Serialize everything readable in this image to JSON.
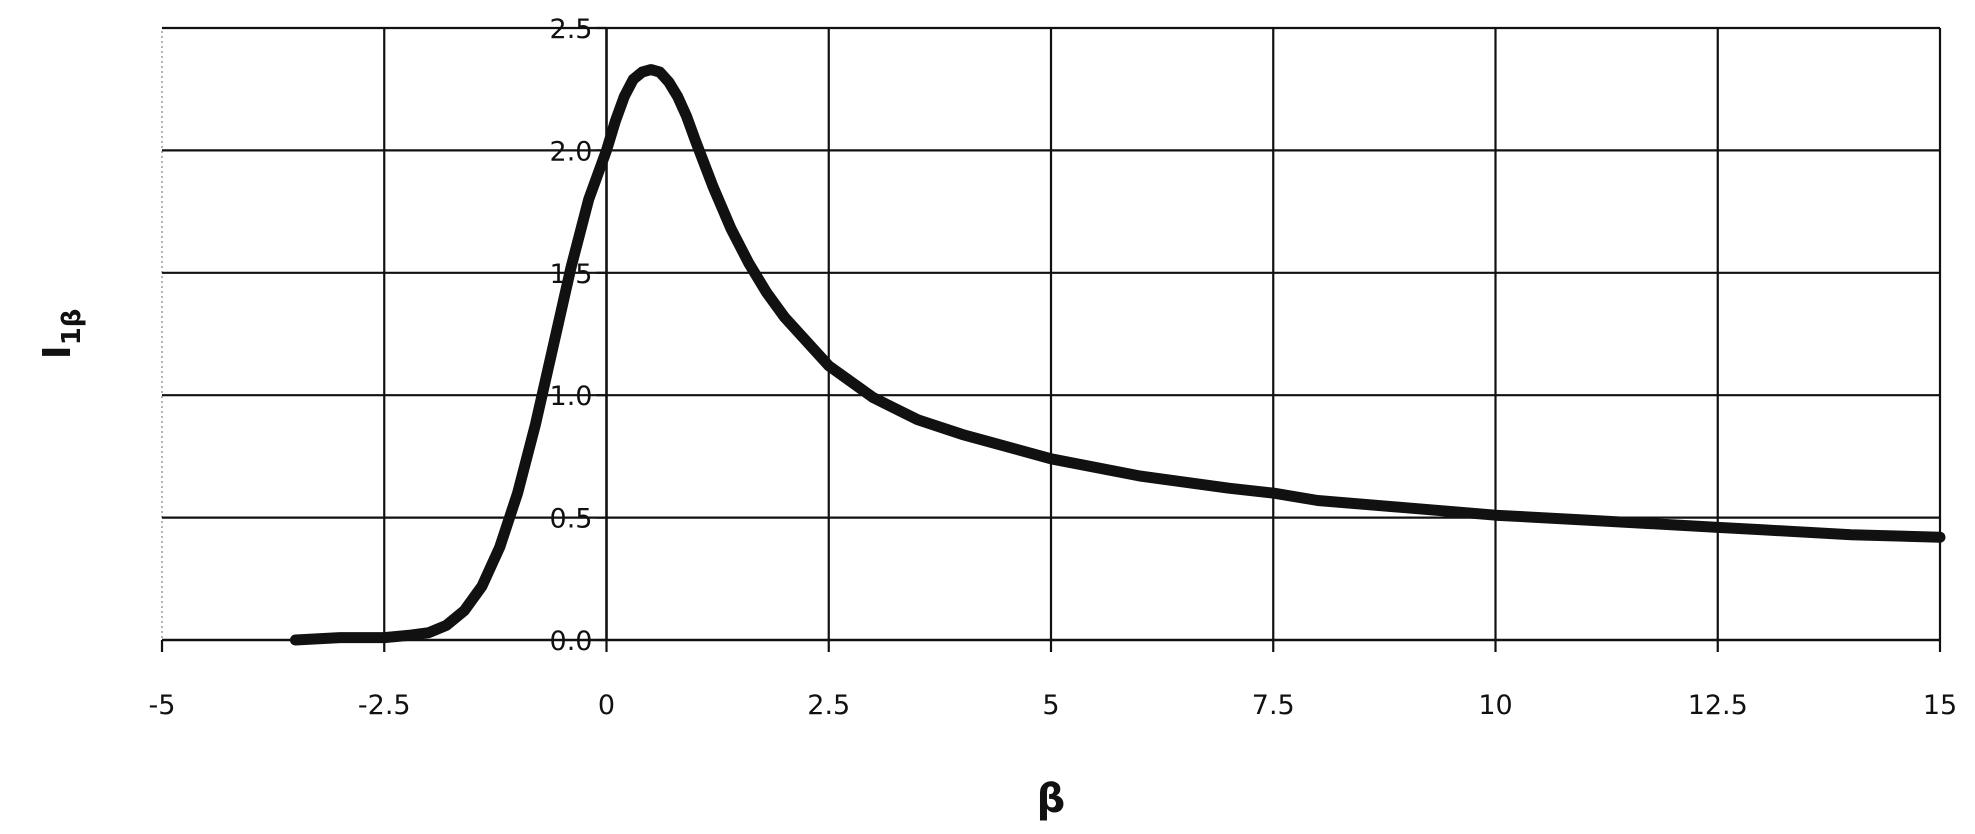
{
  "chart_data": {
    "type": "line",
    "title": "",
    "xlabel": "β",
    "ylabel_main": "I",
    "ylabel_sub": "1β",
    "xlim": [
      -5,
      15
    ],
    "ylim": [
      0,
      2.5
    ],
    "grid": true,
    "legend": "none",
    "x_ticks": [
      -5,
      -2.5,
      0,
      2.5,
      5,
      7.5,
      10,
      12.5,
      15
    ],
    "x_tick_labels": [
      "-5",
      "-2.5",
      "0",
      "2.5",
      "5",
      "7.5",
      "10",
      "12.5",
      "15"
    ],
    "y_ticks": [
      0,
      0.5,
      1,
      1.5,
      2,
      2.5
    ],
    "y_tick_labels": [
      "0.0",
      "0.5",
      "1.0",
      "1.5",
      "2.0",
      "2.5"
    ],
    "line_color": "#111111",
    "series": [
      {
        "x": [
          -3.5,
          -3,
          -2.5,
          -2.2,
          -2,
          -1.8,
          -1.6,
          -1.4,
          -1.2,
          -1,
          -0.8,
          -0.6,
          -0.4,
          -0.2,
          0,
          0.1,
          0.2,
          0.3,
          0.4,
          0.5,
          0.6,
          0.7,
          0.8,
          0.9,
          1,
          1.2,
          1.4,
          1.6,
          1.8,
          2,
          2.5,
          3,
          3.5,
          4,
          5,
          6,
          7,
          7.5,
          8,
          9,
          10,
          11,
          12,
          12.5,
          13,
          14,
          15
        ],
        "y": [
          0.0,
          0.01,
          0.01,
          0.02,
          0.03,
          0.06,
          0.12,
          0.22,
          0.38,
          0.6,
          0.88,
          1.2,
          1.52,
          1.8,
          2.0,
          2.12,
          2.22,
          2.29,
          2.32,
          2.33,
          2.32,
          2.28,
          2.22,
          2.14,
          2.04,
          1.85,
          1.68,
          1.54,
          1.42,
          1.32,
          1.12,
          0.99,
          0.9,
          0.84,
          0.74,
          0.67,
          0.62,
          0.6,
          0.57,
          0.54,
          0.51,
          0.49,
          0.47,
          0.46,
          0.45,
          0.43,
          0.42
        ]
      }
    ]
  }
}
